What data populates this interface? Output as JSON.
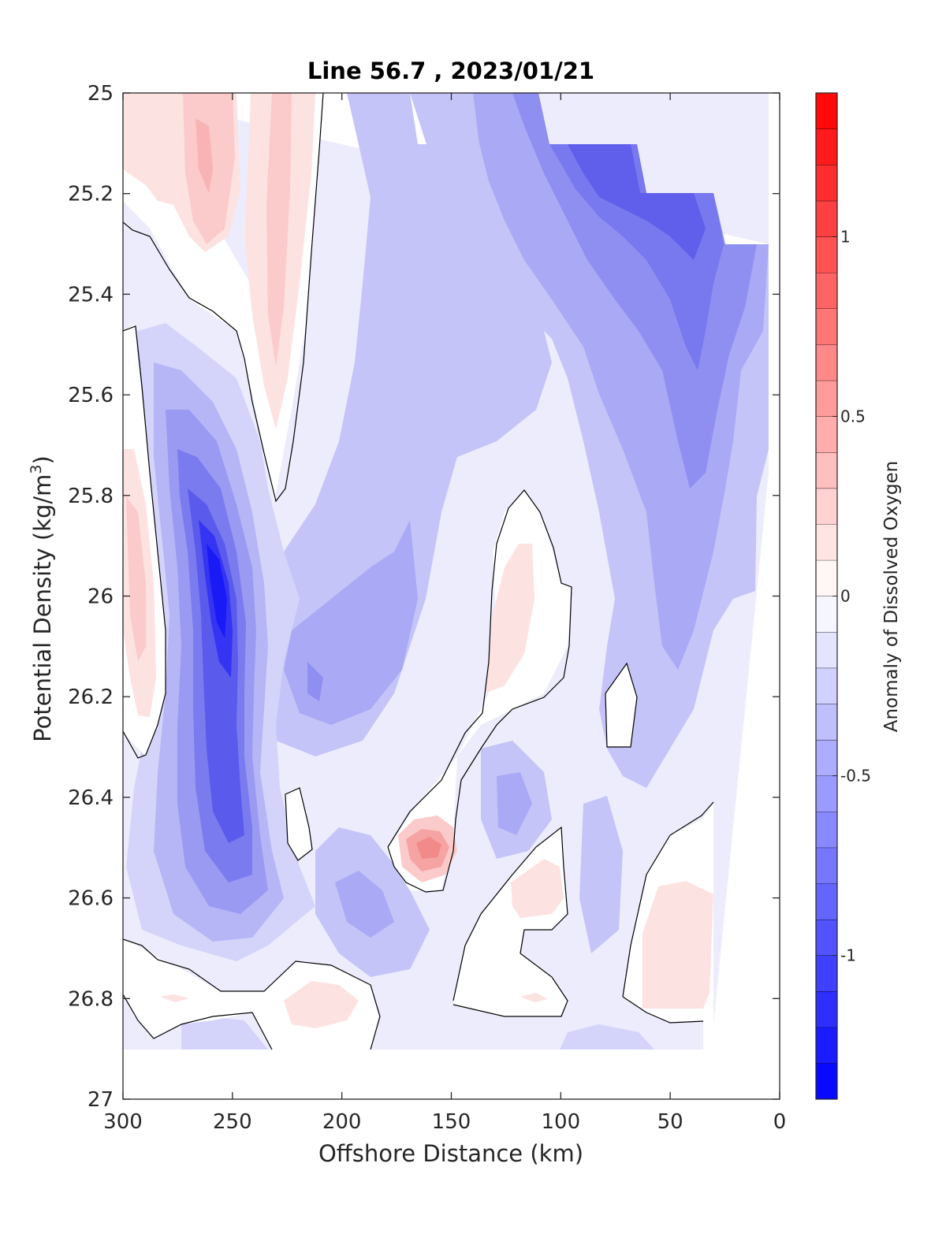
{
  "chart_data": {
    "type": "heatmap",
    "subtype": "filled-contour",
    "title": "Line 56.7 , 2023/01/21",
    "xlabel": "Offshore Distance (km)",
    "ylabel_main": "Potential Density (kg/m",
    "ylabel_sup": "3",
    "ylabel_close": ")",
    "colorbar_label": "Anomaly of Dissolved Oxygen",
    "xlim": [
      300,
      0
    ],
    "ylim": [
      25,
      27
    ],
    "x_reversed": true,
    "y_reversed": true,
    "xticks": [
      300,
      250,
      200,
      150,
      100,
      50,
      0
    ],
    "xtick_labels": [
      "300",
      "250",
      "200",
      "150",
      "100",
      "50",
      "0"
    ],
    "yticks": [
      25,
      25.2,
      25.4,
      25.6,
      25.8,
      26,
      26.2,
      26.4,
      26.6,
      26.8,
      27
    ],
    "ytick_labels": [
      "25",
      "25.2",
      "25.4",
      "25.6",
      "25.8",
      "26",
      "26.2",
      "26.4",
      "26.6",
      "26.8",
      "27"
    ],
    "colorbar": {
      "range": [
        -1.4,
        1.4
      ],
      "step": 0.1,
      "ticks": [
        -1,
        -0.5,
        0,
        0.5,
        1
      ],
      "tick_labels": [
        "-1",
        "-0.5",
        "0",
        "0.5",
        "1"
      ],
      "colormap": "blue-white-red",
      "low_color": "#0000ff",
      "mid_color": "#ffffff",
      "high_color": "#ff0000"
    },
    "features": [
      {
        "name": "strong-low-core",
        "x": 255,
        "y": 26.0,
        "value": -1.3
      },
      {
        "name": "low-lobe-deep",
        "x": 245,
        "y": 26.4,
        "value": -1.0
      },
      {
        "name": "offshore-high-top",
        "x": 262,
        "y": 25.15,
        "value": 0.3
      },
      {
        "name": "high-band-230km",
        "x": 230,
        "y": 25.45,
        "value": 0.2
      },
      {
        "name": "offshore-high-edge",
        "x": 295,
        "y": 26.0,
        "value": 0.2
      },
      {
        "name": "high-spot-160km",
        "x": 160,
        "y": 26.5,
        "value": 0.5
      },
      {
        "name": "high-tongue-120km",
        "x": 123,
        "y": 26.05,
        "value": 0.1
      },
      {
        "name": "nearshore-low-top",
        "x": 80,
        "y": 25.2,
        "value": -1.0
      },
      {
        "name": "nearshore-low-mid",
        "x": 45,
        "y": 25.5,
        "value": -0.8
      },
      {
        "name": "high-patch-deep-40km",
        "x": 30,
        "y": 26.7,
        "value": 0.1
      },
      {
        "name": "high-patch-deep-100km",
        "x": 105,
        "y": 26.6,
        "value": 0.1
      },
      {
        "name": "high-patch-deep-200km",
        "x": 200,
        "y": 26.82,
        "value": 0.1
      }
    ]
  }
}
